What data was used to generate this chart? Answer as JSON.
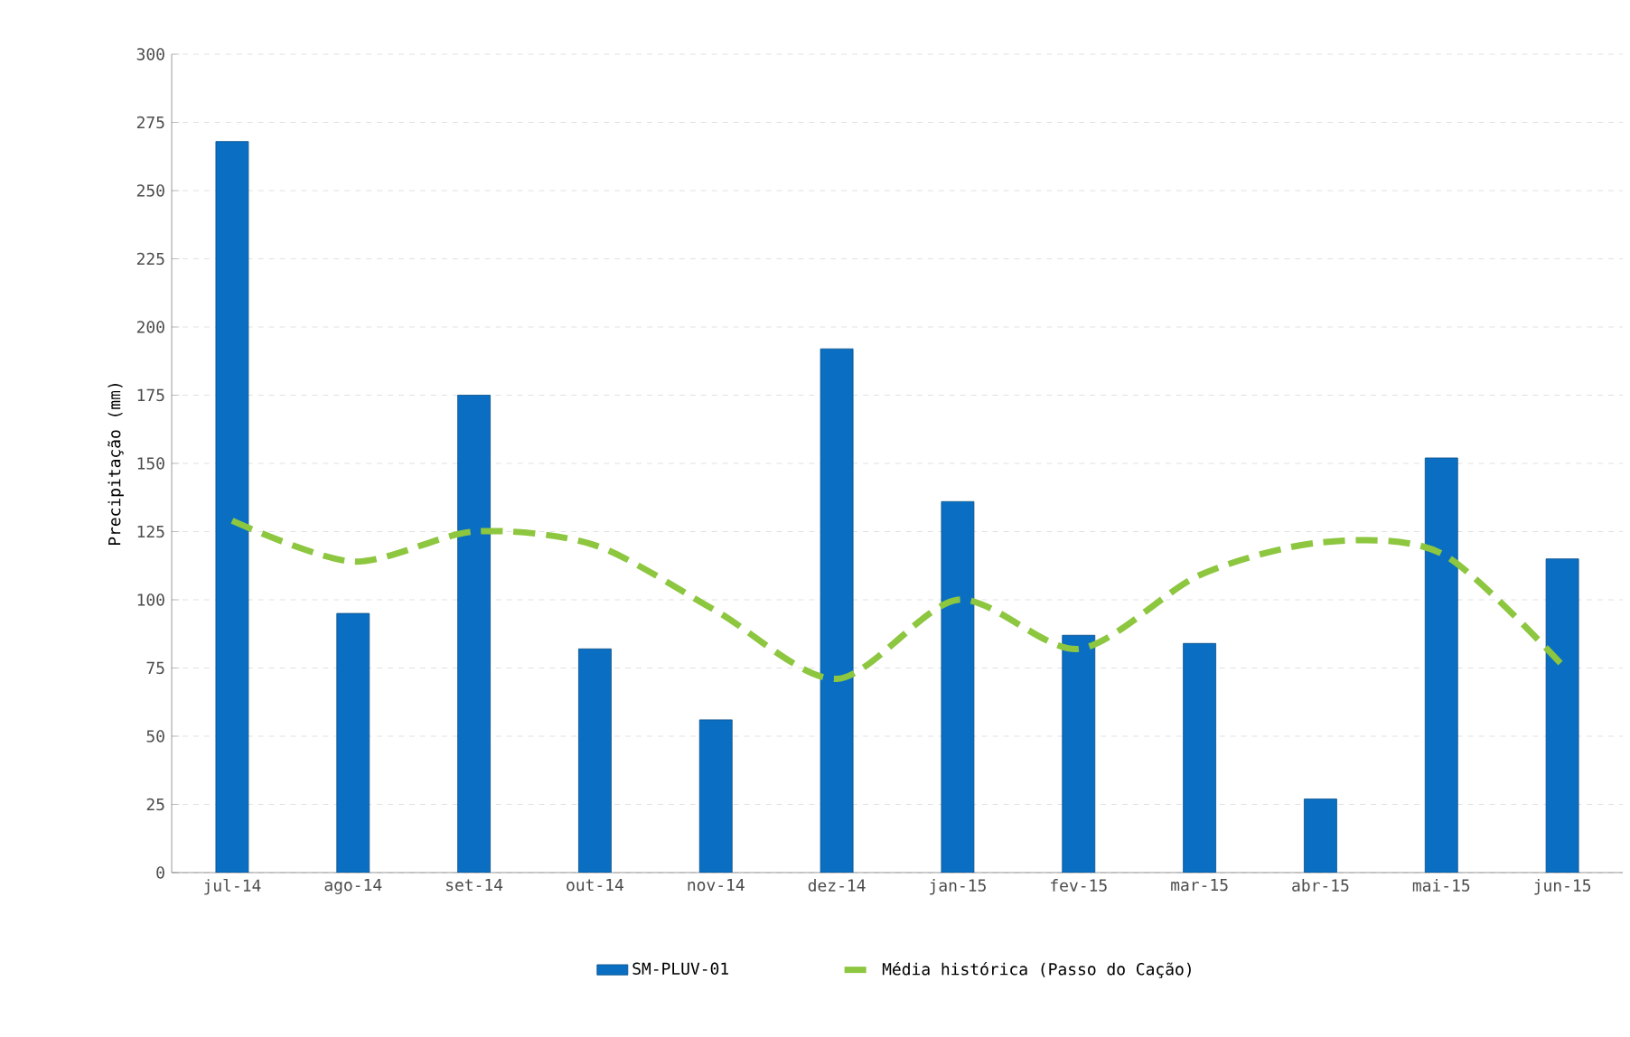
{
  "chart_data": {
    "type": "bar",
    "ylabel": "Precipitação (mm)",
    "categories": [
      "jul-14",
      "ago-14",
      "set-14",
      "out-14",
      "nov-14",
      "dez-14",
      "jan-15",
      "fev-15",
      "mar-15",
      "abr-15",
      "mai-15",
      "jun-15"
    ],
    "series": [
      {
        "name": "SM-PLUV-01",
        "color": "#0a6fc2",
        "values": [
          268,
          95,
          175,
          82,
          56,
          192,
          136,
          87,
          84,
          27,
          152,
          115
        ]
      },
      {
        "name": "Média histórica (Passo do Cação)",
        "type": "line",
        "color": "#8dc63f",
        "line_style": "dashed",
        "values": [
          129,
          114,
          125,
          120,
          96,
          71,
          100,
          82,
          109,
          121,
          117,
          76
        ]
      }
    ],
    "ylim": [
      0,
      300
    ],
    "yticks": [
      0,
      25,
      50,
      75,
      100,
      125,
      150,
      175,
      200,
      225,
      250,
      275,
      300
    ],
    "grid": "y",
    "legend": "bottom"
  }
}
